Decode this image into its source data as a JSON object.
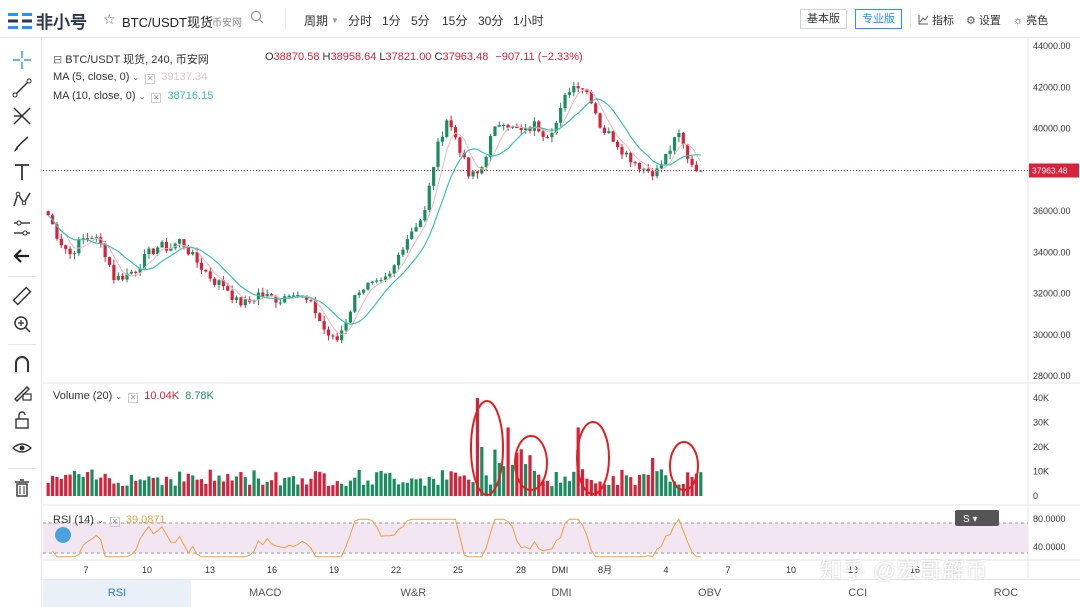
{
  "header": {
    "logo_text": "非小号",
    "symbol": "BTC/USDT现货",
    "exchange": "币安网",
    "period_label": "周期",
    "periods": [
      "分时",
      "1分",
      "5分",
      "15分",
      "30分",
      "1小时"
    ],
    "basic_btn": "基本版",
    "pro_btn": "专业版",
    "indicators": "指标",
    "settings": "设置",
    "theme": "亮色",
    "icons": [
      "search-icon",
      "star-icon",
      "indicator-icon",
      "gear-icon",
      "sun-icon"
    ]
  },
  "legend": {
    "title": "BTC/USDT 现货, 240, 币安网",
    "open_label": "O",
    "open": "38870.58",
    "high_label": "H",
    "high": "38958.64",
    "low_label": "L",
    "low": "37821.00",
    "close_label": "C",
    "close": "37963.48",
    "change": "−907.11 (−2.33%)",
    "ma5_label": "MA (5, close, 0)",
    "ma5_value": "39137.34",
    "ma10_label": "MA (10, close, 0)",
    "ma10_value": "38716.15",
    "volume_label": "Volume (20)",
    "vol1": "10.04K",
    "vol2": "8.78K",
    "rsi_label": "RSI (14)",
    "rsi_value": "39.0871"
  },
  "colors": {
    "up": "#1a8d5f",
    "down": "#d8213a",
    "ma5": "#f0b6b6",
    "ma10": "#3cc3b0",
    "rsi": "#f0a040",
    "rsi_band": "#f3e6f3"
  },
  "chart_data": [
    {
      "type": "candlestick",
      "title": "BTC/USDT 现货, 240, 币安网",
      "y_ticks": [
        "44000.00",
        "42000.00",
        "40000.00",
        "38000.00",
        "36000.00",
        "34000.00",
        "32000.00",
        "30000.00",
        "28000.00"
      ],
      "ylim": [
        28000,
        44000
      ],
      "last_price": "37963.48",
      "x_ticks": [
        "7",
        "10",
        "13",
        "16",
        "19",
        "22",
        "25",
        "28",
        "DMI",
        "8月",
        "4",
        "7",
        "10",
        "13",
        "16"
      ],
      "close_path": [
        35800,
        34600,
        33900,
        34600,
        34800,
        34200,
        32700,
        32900,
        33200,
        33900,
        34300,
        34200,
        34600,
        33800,
        33200,
        32600,
        32400,
        31600,
        31500,
        32000,
        31800,
        31700,
        32200,
        31800,
        31300,
        30200,
        29600,
        30800,
        32200,
        32400,
        32400,
        32900,
        34300,
        35200,
        35800,
        38700,
        40500,
        39400,
        37700,
        37800,
        39500,
        40500,
        40000,
        39800,
        40200,
        39700,
        40300,
        41900,
        42200,
        41600,
        40000,
        39600,
        38900,
        38400,
        38000,
        37900,
        38800,
        39700,
        38400,
        37963
      ]
    },
    {
      "type": "bar",
      "title": "Volume (20)",
      "y_ticks": [
        "40K",
        "30K",
        "20K",
        "10K",
        "0"
      ],
      "ylim": [
        0,
        40000
      ]
    },
    {
      "type": "line",
      "title": "RSI (14)",
      "y_ticks": [
        "80.0000",
        "40.0000"
      ]
    }
  ],
  "tabs": [
    "RSI",
    "MACD",
    "W&R",
    "DMI",
    "OBV",
    "CCI",
    "ROC"
  ],
  "watermark": "知乎 @宏哥解币"
}
